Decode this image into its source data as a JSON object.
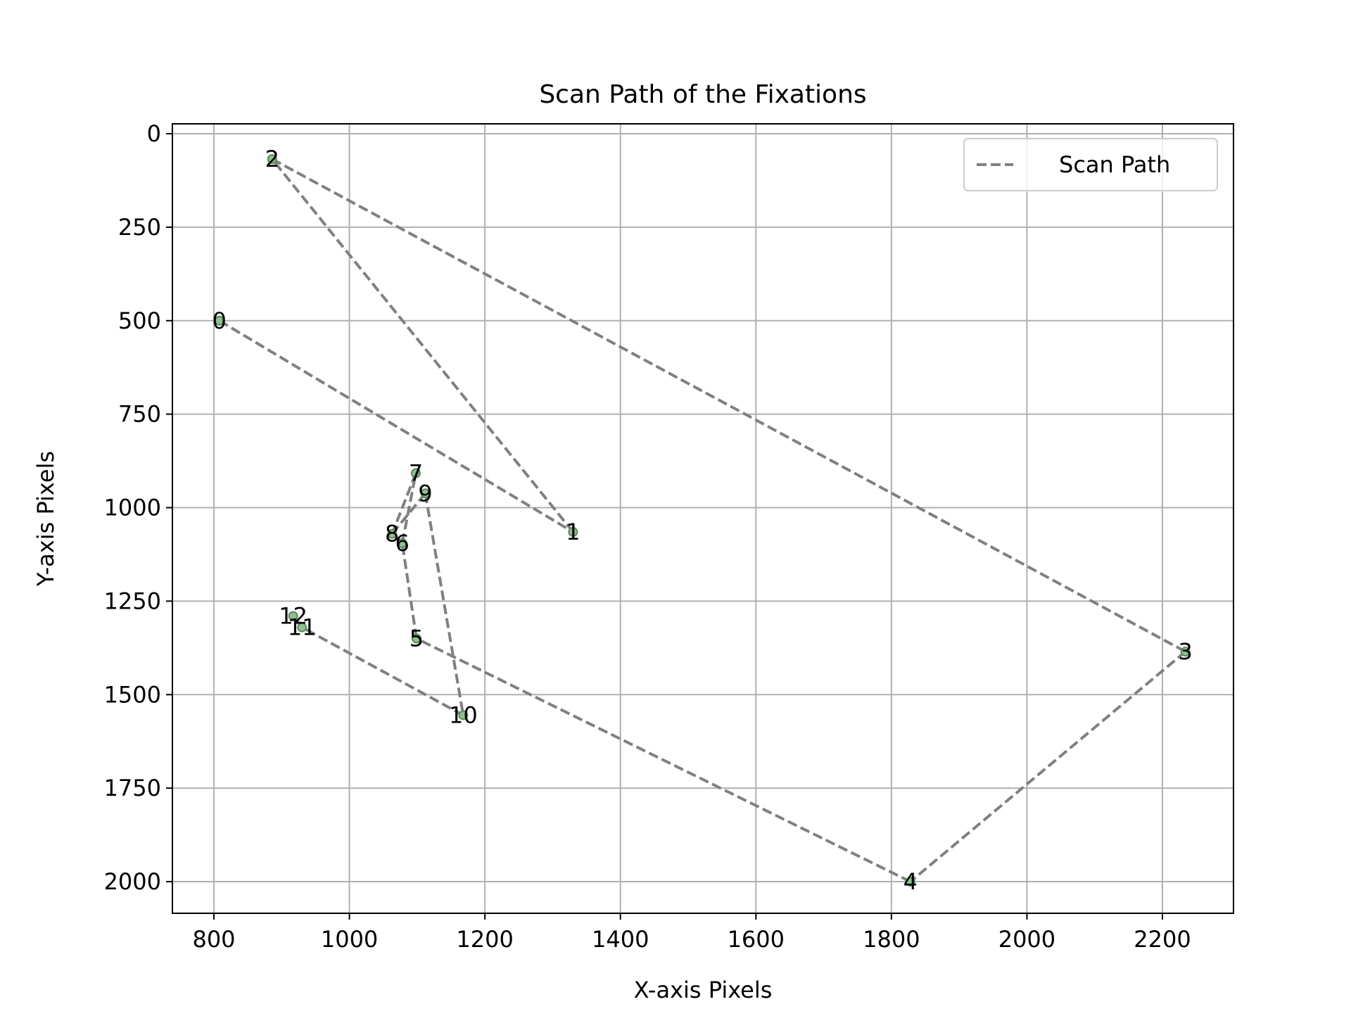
{
  "chart_data": {
    "type": "line",
    "title": "Scan Path of the Fixations",
    "xlabel": "X-axis Pixels",
    "ylabel": "Y-axis Pixels",
    "xlim": [
      738,
      2307
    ],
    "ylim": [
      2090,
      -25
    ],
    "y_inverted": true,
    "x_ticks": [
      800,
      1000,
      1200,
      1400,
      1600,
      1800,
      2000,
      2200
    ],
    "y_ticks": [
      0,
      250,
      500,
      750,
      1000,
      1250,
      1500,
      1750,
      2000
    ],
    "grid": true,
    "legend": {
      "placement": "upper right",
      "entries": [
        "Scan Path"
      ]
    },
    "colors": {
      "path": "#808080",
      "point_fill": "#8fbf8f",
      "point_edge": "#5a8a5a",
      "grid": "#b0b0b0"
    },
    "series": [
      {
        "name": "Scan Path",
        "line_style": "dashed",
        "points": [
          {
            "label": "0",
            "x": 808,
            "y": 500
          },
          {
            "label": "1",
            "x": 1330,
            "y": 1065
          },
          {
            "label": "2",
            "x": 886,
            "y": 68
          },
          {
            "label": "3",
            "x": 2234,
            "y": 1385
          },
          {
            "label": "4",
            "x": 1828,
            "y": 2000
          },
          {
            "label": "5",
            "x": 1099,
            "y": 1350
          },
          {
            "label": "6",
            "x": 1078,
            "y": 1095
          },
          {
            "label": "7",
            "x": 1098,
            "y": 908
          },
          {
            "label": "8",
            "x": 1063,
            "y": 1070
          },
          {
            "label": "9",
            "x": 1112,
            "y": 962
          },
          {
            "label": "10",
            "x": 1168,
            "y": 1555
          },
          {
            "label": "11",
            "x": 930,
            "y": 1320
          },
          {
            "label": "12",
            "x": 917,
            "y": 1290
          }
        ]
      }
    ]
  }
}
